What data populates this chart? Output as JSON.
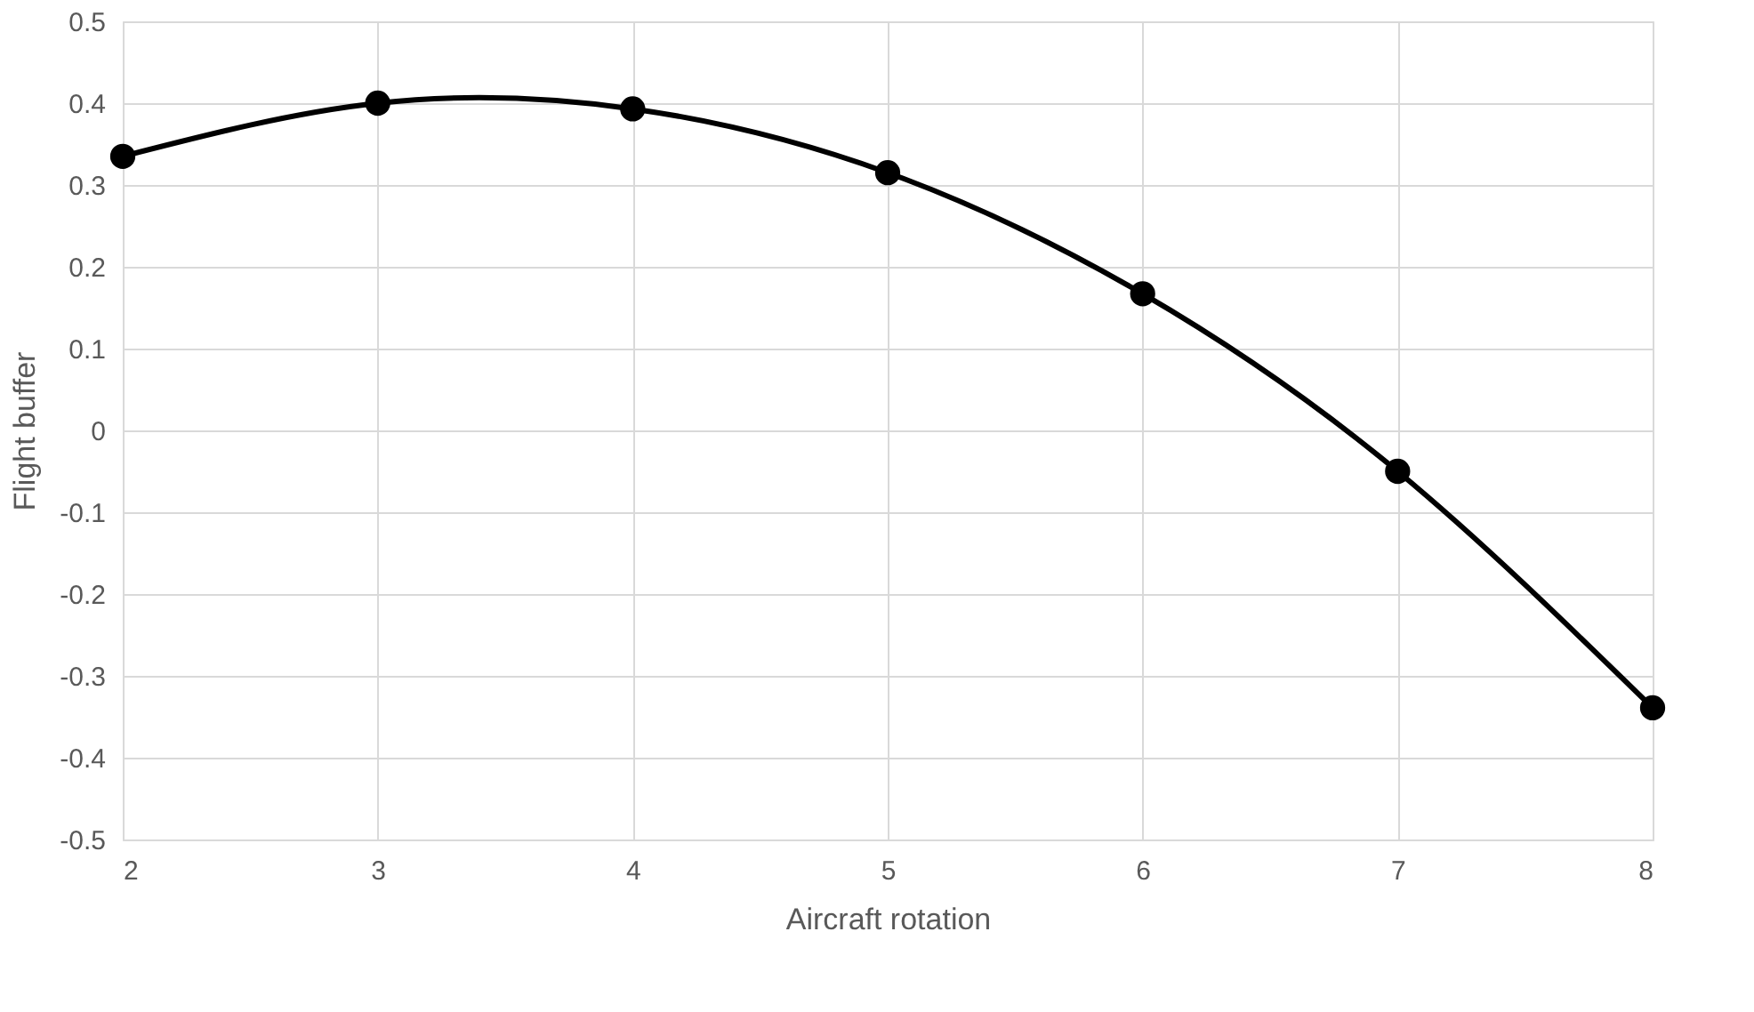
{
  "chart_data": {
    "type": "line",
    "xlabel": "Aircraft rotation",
    "ylabel": "Flight buffer",
    "x": [
      2,
      3,
      4,
      5,
      6,
      7,
      8
    ],
    "series": [
      {
        "color": "#000000",
        "values": [
          0.335,
          0.4,
          0.393,
          0.315,
          0.167,
          -0.05,
          -0.339
        ]
      }
    ],
    "xlim": [
      2,
      8
    ],
    "xticks": [
      2,
      3,
      4,
      5,
      6,
      7,
      8
    ],
    "ylim": [
      -0.5,
      0.5
    ],
    "yticks": [
      -0.5,
      -0.4,
      -0.3,
      -0.2,
      -0.1,
      0,
      0.1,
      0.2,
      0.3,
      0.4,
      0.5
    ],
    "grid": true,
    "marker": "circle",
    "line_style": "solid"
  }
}
